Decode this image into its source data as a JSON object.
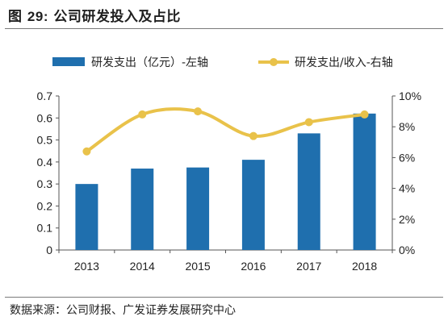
{
  "figure": {
    "label": "图",
    "number": "29:",
    "title": "公司研发投入及占比"
  },
  "source": "数据来源：公司财报、广发证券发展研究中心",
  "colors": {
    "bar": "#1f6fae",
    "line": "#e9c24a"
  },
  "chart_data": {
    "type": "bar+line",
    "categories": [
      "2013",
      "2014",
      "2015",
      "2016",
      "2017",
      "2018"
    ],
    "series": [
      {
        "name": "研发支出（亿元）-左轴",
        "type": "bar",
        "axis": "left",
        "values": [
          0.3,
          0.37,
          0.375,
          0.41,
          0.53,
          0.62
        ]
      },
      {
        "name": "研发支出/收入-右轴",
        "type": "line",
        "axis": "right",
        "smooth": true,
        "values": [
          6.4,
          8.8,
          9.0,
          7.4,
          8.3,
          8.8
        ]
      }
    ],
    "y_left": {
      "lim": [
        0,
        0.7
      ],
      "ticks": [
        "0",
        "0.1",
        "0.2",
        "0.3",
        "0.4",
        "0.5",
        "0.6",
        "0.7"
      ]
    },
    "y_right": {
      "lim": [
        0,
        10
      ],
      "ticks": [
        "0%",
        "2%",
        "4%",
        "6%",
        "8%",
        "10%"
      ]
    },
    "legend_position": "top",
    "grid": false
  }
}
